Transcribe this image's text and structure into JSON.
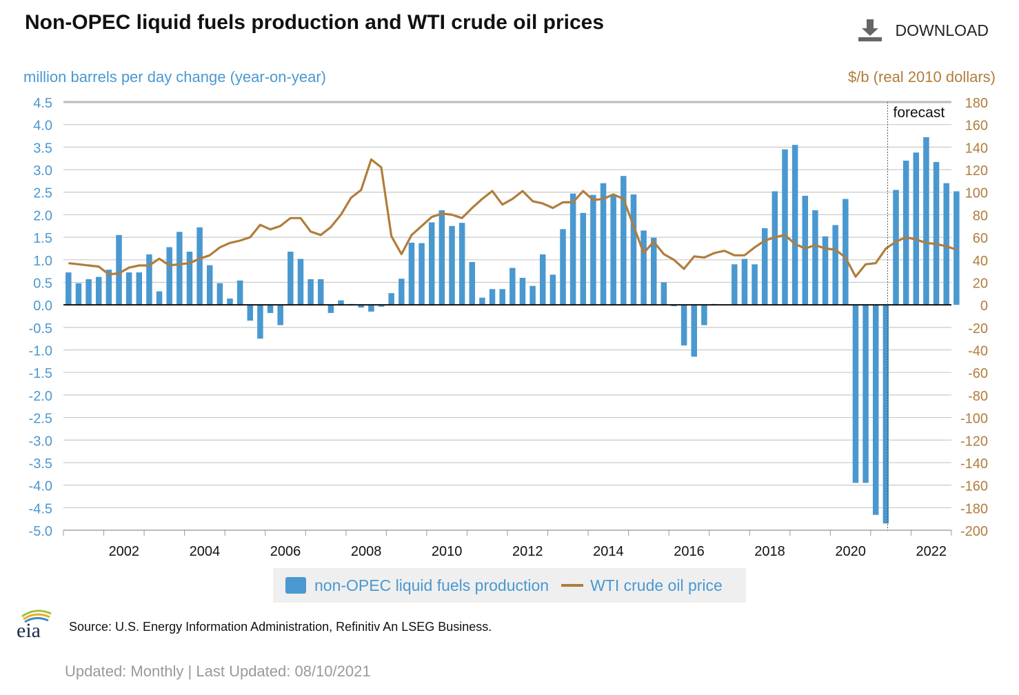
{
  "title": "Non-OPEC liquid fuels production and WTI crude oil prices",
  "download_label": "DOWNLOAD",
  "source": "Source: U.S. Energy Information Administration, Refinitiv An LSEG Business.",
  "updated": "Updated: Monthly | Last Updated: 08/10/2021",
  "logo_text": "eia",
  "colors": {
    "bars": "#4a98d0",
    "line": "#b07d3c"
  },
  "chart_data": {
    "type": "bar+line",
    "ylabel_left": "million barrels per day change (year-on-year)",
    "ylabel_right": "$/b (real 2010 dollars)",
    "ylim_left": [
      -5.0,
      4.5
    ],
    "ylim_right": [
      -200,
      180
    ],
    "left_ticks": [
      "4.5",
      "4.0",
      "3.5",
      "3.0",
      "2.5",
      "2.0",
      "1.5",
      "1.0",
      "0.5",
      "0.0",
      "-0.5",
      "-1.0",
      "-1.5",
      "-2.0",
      "-2.5",
      "-3.0",
      "-3.5",
      "-4.0",
      "-4.5",
      "-5.0"
    ],
    "right_ticks": [
      "180",
      "160",
      "140",
      "120",
      "100",
      "80",
      "60",
      "40",
      "20",
      "0",
      "-20",
      "-40",
      "-60",
      "-80",
      "-100",
      "-120",
      "-140",
      "-160",
      "-180",
      "-200"
    ],
    "x_ticks": [
      "2002",
      "2004",
      "2006",
      "2008",
      "2010",
      "2012",
      "2014",
      "2016",
      "2018",
      "2020",
      "2022"
    ],
    "forecast_label": "forecast",
    "forecast_start": 2021.42,
    "x_start": 2001.0,
    "x_end": 2023.0,
    "bar_series": {
      "name": "non-OPEC liquid fuels production",
      "x_start": 2001.125,
      "x_step": 0.25,
      "values": [
        0.72,
        0.48,
        0.57,
        0.62,
        0.78,
        1.55,
        0.72,
        0.72,
        1.12,
        0.3,
        1.28,
        1.62,
        1.18,
        1.72,
        0.88,
        0.48,
        0.14,
        0.54,
        -0.35,
        -0.75,
        -0.18,
        -0.45,
        1.18,
        1.02,
        0.57,
        0.57,
        -0.18,
        0.1,
        0.02,
        -0.06,
        -0.15,
        -0.04,
        0.26,
        0.58,
        1.38,
        1.37,
        1.83,
        2.1,
        1.75,
        1.82,
        0.95,
        0.16,
        0.35,
        0.35,
        0.82,
        0.6,
        0.42,
        1.12,
        0.67,
        1.68,
        2.47,
        2.04,
        2.44,
        2.7,
        2.42,
        2.86,
        2.45,
        1.65,
        1.49,
        0.5,
        -0.03,
        -0.9,
        -1.15,
        -0.45,
        0.02,
        0.0,
        0.9,
        1.02,
        0.9,
        1.7,
        2.52,
        3.45,
        3.55,
        2.42,
        2.1,
        1.52,
        1.77,
        2.35,
        -3.95,
        -3.95,
        -4.66,
        -4.85,
        2.55,
        3.2,
        3.38,
        3.72,
        3.17,
        2.7,
        2.52
      ]
    },
    "line_series": {
      "name": "WTI crude oil price",
      "x_start": 2001.125,
      "x_step": 0.25,
      "values": [
        37,
        36,
        35,
        34,
        27,
        28,
        33,
        35,
        35,
        41,
        35,
        36,
        37,
        41,
        44,
        51,
        55,
        57,
        60,
        71,
        67,
        70,
        77,
        77,
        65,
        62,
        69,
        80,
        95,
        102,
        129,
        122,
        61,
        45,
        62,
        70,
        78,
        81,
        80,
        77,
        86,
        94,
        101,
        89,
        94,
        101,
        92,
        90,
        86,
        91,
        91,
        101,
        93,
        94,
        98,
        94,
        70,
        46,
        56,
        45,
        40,
        32,
        43,
        42,
        46,
        48,
        44,
        44,
        51,
        57,
        60,
        62,
        54,
        50,
        53,
        50,
        49,
        42,
        25,
        36,
        37,
        50,
        56,
        60,
        58,
        55,
        54,
        52,
        49
      ]
    }
  }
}
